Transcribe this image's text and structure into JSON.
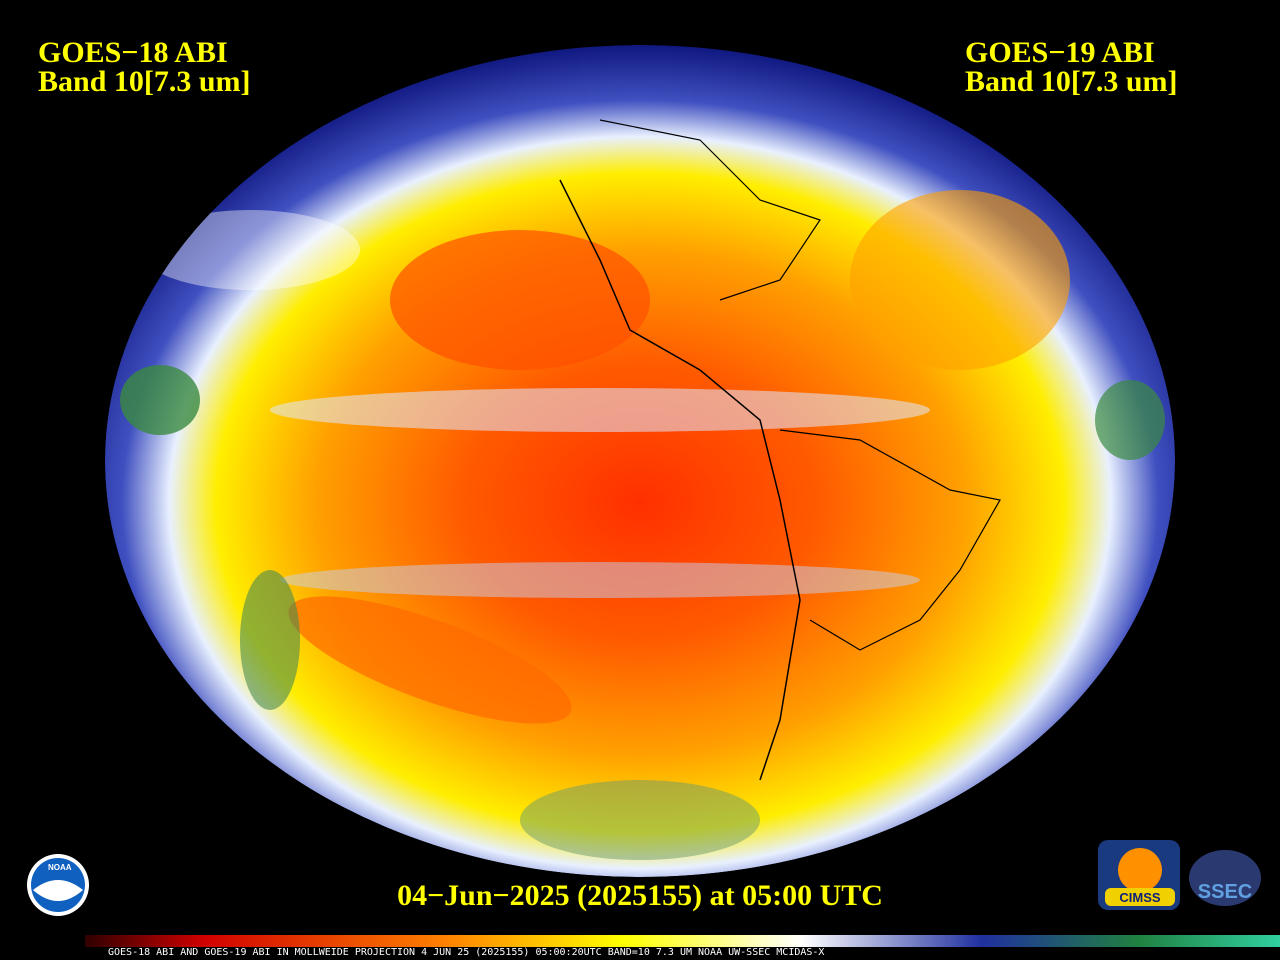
{
  "left_label": {
    "satellite": "GOES−18 ABI",
    "band": "Band 10[7.3 um]"
  },
  "right_label": {
    "satellite": "GOES−19 ABI",
    "band": "Band 10[7.3 um]"
  },
  "timestamp": "04−Jun−2025 (2025155) at 05:00 UTC",
  "footer": "GOES-18 ABI AND GOES-19 ABI IN MOLLWEIDE PROJECTION 4 JUN 25 (2025155) 05:00:20UTC BAND=10 7.3 UM NOAA UW-SSEC MCIDAS-X",
  "logos": {
    "noaa": "NOAA",
    "cimss": "CIMSS",
    "ssec": "SSEC"
  }
}
